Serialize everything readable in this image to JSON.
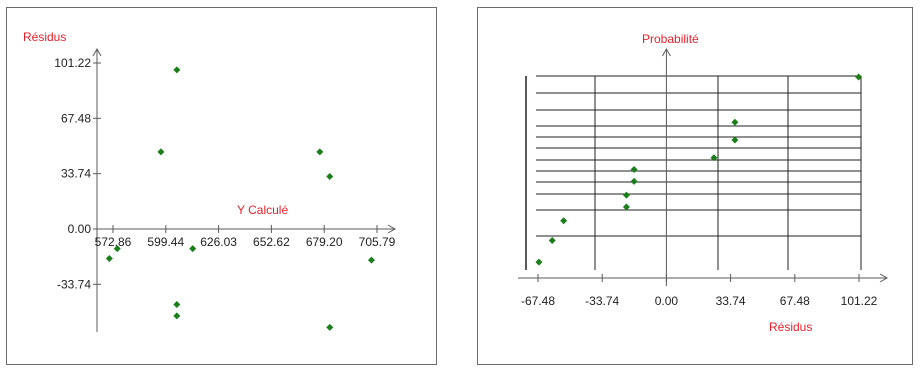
{
  "colors": {
    "axis": "#5a5a5a",
    "label": "#e8202a",
    "point": "#1a7f1a",
    "grid": "#222222"
  },
  "chart_data": [
    {
      "type": "scatter",
      "title": "",
      "xlabel": "Y Calculé",
      "ylabel": "Résidus",
      "x_ticks": [
        "572.86",
        "599.44",
        "626.03",
        "652.62",
        "679.20",
        "705.79"
      ],
      "x_tick_values": [
        572.86,
        599.44,
        626.03,
        652.62,
        679.2,
        705.79
      ],
      "y_ticks": [
        "-33.74",
        "0.00",
        "33.74",
        "67.48",
        "101.22"
      ],
      "y_tick_values": [
        -33.74,
        0,
        33.74,
        67.48,
        101.22
      ],
      "grid": false,
      "points": [
        {
          "x": 571,
          "y": -18
        },
        {
          "x": 575,
          "y": -12
        },
        {
          "x": 597,
          "y": 47
        },
        {
          "x": 605,
          "y": 97
        },
        {
          "x": 605,
          "y": -46
        },
        {
          "x": 605,
          "y": -53
        },
        {
          "x": 613,
          "y": -12
        },
        {
          "x": 677,
          "y": 47
        },
        {
          "x": 682,
          "y": 32
        },
        {
          "x": 682,
          "y": -60
        },
        {
          "x": 703,
          "y": -19
        }
      ]
    },
    {
      "type": "scatter",
      "title": "",
      "xlabel": "Résidus",
      "ylabel": "Probabilité",
      "x_ticks": [
        "-67.48",
        "-33.74",
        "0.00",
        "33.74",
        "67.48",
        "101.22"
      ],
      "x_tick_values": [
        -67.48,
        -33.74,
        0,
        33.74,
        67.48,
        101.22
      ],
      "grid": true,
      "points": [
        {
          "x": -67,
          "y": 0.04
        },
        {
          "x": -60,
          "y": 0.15
        },
        {
          "x": -54,
          "y": 0.25
        },
        {
          "x": -21,
          "y": 0.32
        },
        {
          "x": -21,
          "y": 0.38
        },
        {
          "x": -17,
          "y": 0.45
        },
        {
          "x": -17,
          "y": 0.51
        },
        {
          "x": 25,
          "y": 0.57
        },
        {
          "x": 36,
          "y": 0.66
        },
        {
          "x": 36,
          "y": 0.75
        },
        {
          "x": 101,
          "y": 0.98
        }
      ]
    }
  ]
}
